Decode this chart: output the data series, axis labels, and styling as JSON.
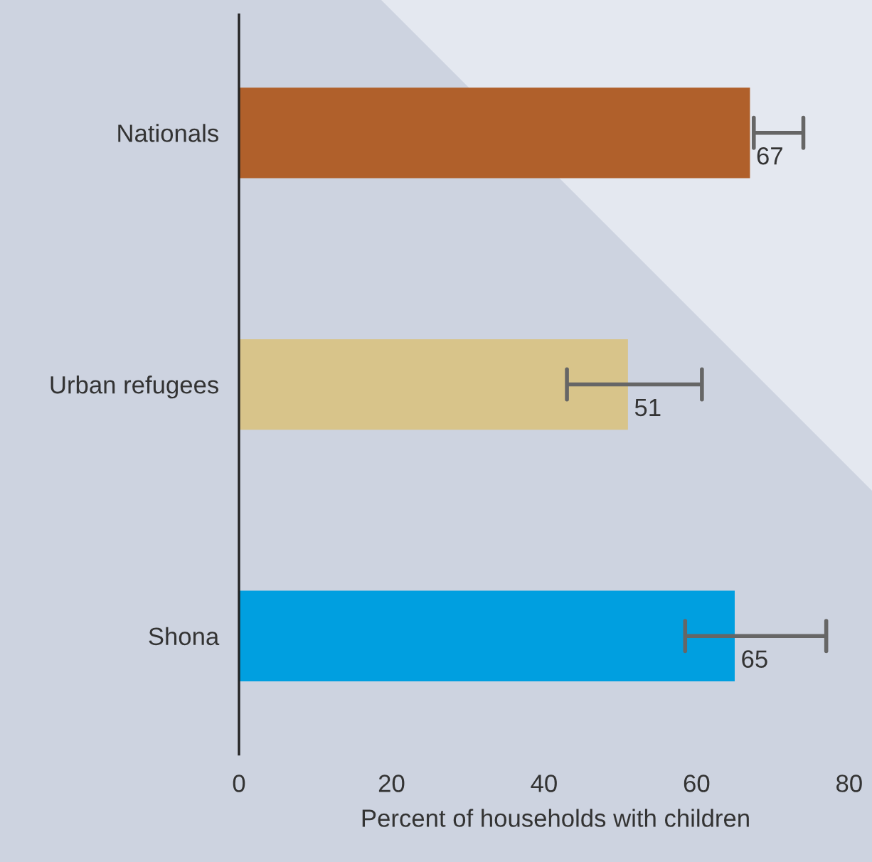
{
  "chart_data": {
    "type": "bar",
    "orientation": "horizontal",
    "xlabel": "Percent of households with children",
    "categories": [
      "Nationals",
      "Urban refugees",
      "Shona"
    ],
    "values": [
      67,
      51,
      65
    ],
    "colors": [
      "#b0602b",
      "#d8c48a",
      "#009fe0"
    ],
    "errors": [
      [
        67.5,
        74
      ],
      [
        43,
        60.7
      ],
      [
        58.5,
        77
      ]
    ],
    "value_labels": [
      "67",
      "51",
      "65"
    ],
    "xlim": [
      0,
      83
    ],
    "xticks": [
      0,
      20,
      40,
      60,
      80
    ],
    "grid": false,
    "legend": false
  }
}
